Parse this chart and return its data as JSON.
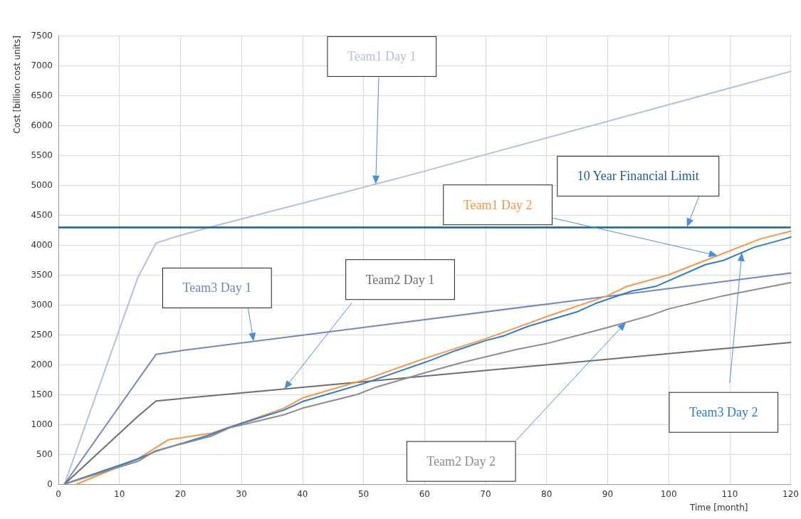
{
  "chart_data": {
    "type": "line",
    "xlabel": "Time [month]",
    "ylabel": "Cost [billion cost units]",
    "xlim": [
      0,
      120
    ],
    "xticks": [
      0,
      10,
      20,
      30,
      40,
      50,
      60,
      70,
      80,
      90,
      100,
      110,
      120
    ],
    "ylim": [
      0,
      7500
    ],
    "yticks": [
      0,
      500,
      1000,
      1500,
      2000,
      2500,
      3000,
      3500,
      4000,
      4500,
      5000,
      5500,
      6000,
      6500,
      7000,
      7500
    ],
    "grid": true,
    "marker": "none",
    "line_style": "solid",
    "series": [
      {
        "name": "Team1 Day 1",
        "color": "#b4c0de",
        "x": [
          1,
          13,
          16,
          19,
          25,
          57,
          120
        ],
        "values": [
          0,
          3450,
          4030,
          4130,
          4300,
          5150,
          6900
        ]
      },
      {
        "name": "Team3 Day 1",
        "color": "#6f87c4",
        "x": [
          1,
          16,
          20,
          120
        ],
        "values": [
          0,
          2170,
          2230,
          3530
        ]
      },
      {
        "name": "Team2 Day 1",
        "color": "#6e6e6e",
        "x": [
          1,
          13,
          16,
          20,
          120
        ],
        "values": [
          0,
          1130,
          1390,
          1430,
          2370
        ]
      },
      {
        "name": "Team1 Day 2",
        "color": "#f79646",
        "x": [
          3,
          13,
          18,
          25,
          28,
          37,
          40,
          50,
          60,
          70,
          76,
          80,
          90,
          93,
          100,
          110,
          115,
          120
        ],
        "values": [
          0,
          420,
          740,
          850,
          950,
          1270,
          1440,
          1740,
          2100,
          2430,
          2650,
          2800,
          3150,
          3300,
          3500,
          3900,
          4100,
          4230
        ]
      },
      {
        "name": "Team3 Day 2",
        "color": "#2e7bcf",
        "x": [
          1,
          13,
          16,
          25,
          28,
          37,
          40,
          50,
          61,
          65,
          70,
          73,
          77,
          85,
          88,
          94,
          98,
          106,
          109,
          114,
          119,
          120
        ],
        "values": [
          0,
          420,
          550,
          830,
          950,
          1240,
          1380,
          1680,
          2070,
          2230,
          2400,
          2480,
          2640,
          2880,
          3020,
          3230,
          3310,
          3670,
          3740,
          3960,
          4100,
          4130
        ]
      },
      {
        "name": "Team2 Day 2",
        "color": "#8c8c8c",
        "x": [
          1,
          13,
          16,
          25,
          28,
          37,
          40,
          49,
          52,
          60,
          66,
          75,
          80,
          90,
          97,
          100,
          109,
          114,
          120
        ],
        "values": [
          0,
          380,
          560,
          800,
          940,
          1160,
          1270,
          1500,
          1620,
          1860,
          2030,
          2250,
          2350,
          2620,
          2820,
          2930,
          3150,
          3250,
          3370
        ]
      }
    ],
    "ref_lines": [
      {
        "axis": "y",
        "value": 4300,
        "label": "10 Year Financial Limit",
        "color": "#1f5c99",
        "line_style": "solid"
      }
    ]
  }
}
